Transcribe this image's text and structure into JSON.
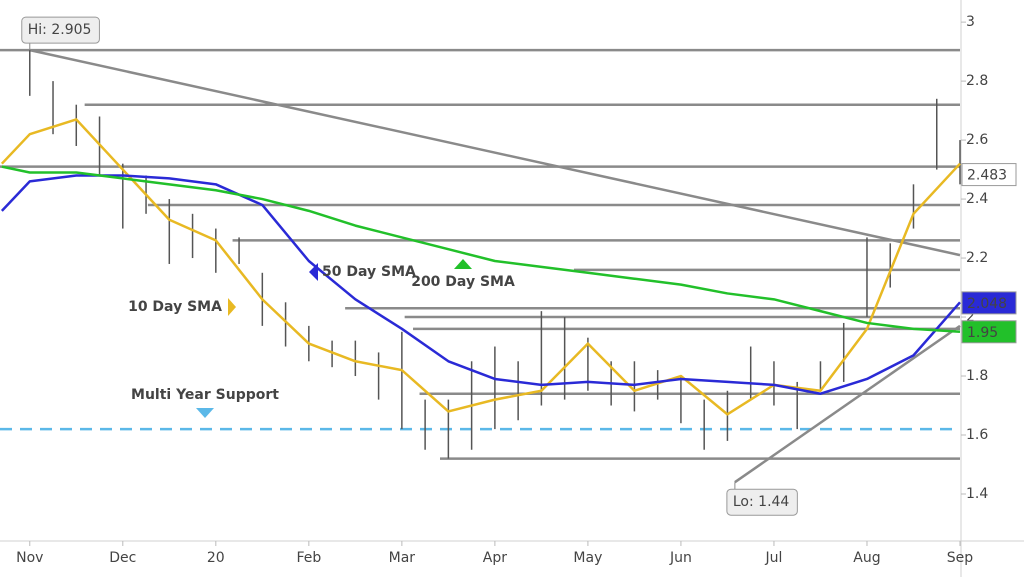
{
  "chart_data": {
    "type": "line",
    "xlim": [
      -0.32,
      10
    ],
    "ylim": [
      1.244,
      3.075
    ],
    "xticks": [
      {
        "value": 0,
        "label": "Nov"
      },
      {
        "value": 1,
        "label": "Dec"
      },
      {
        "value": 2,
        "label": "20"
      },
      {
        "value": 3,
        "label": "Feb"
      },
      {
        "value": 4,
        "label": "Mar"
      },
      {
        "value": 5,
        "label": "Apr"
      },
      {
        "value": 6,
        "label": "May"
      },
      {
        "value": 7,
        "label": "Jun"
      },
      {
        "value": 8,
        "label": "Jul"
      },
      {
        "value": 9,
        "label": "Aug"
      },
      {
        "value": 10,
        "label": "Sep"
      }
    ],
    "yticks": [
      1.4,
      1.6,
      1.8,
      2,
      2.2,
      2.4,
      2.6,
      2.8,
      3
    ],
    "x": [
      -0.3,
      0,
      0.5,
      1,
      1.5,
      2,
      2.5,
      3,
      3.5,
      4,
      4.5,
      5,
      5.5,
      6,
      6.5,
      7,
      7.5,
      8,
      8.5,
      9,
      9.5,
      10
    ],
    "series": [
      {
        "name": "10 Day SMA",
        "color": "#e8b923",
        "values": [
          2.52,
          2.62,
          2.67,
          2.5,
          2.33,
          2.26,
          2.06,
          1.91,
          1.85,
          1.82,
          1.68,
          1.72,
          1.75,
          1.91,
          1.75,
          1.8,
          1.67,
          1.77,
          1.75,
          1.96,
          2.35,
          2.52
        ]
      },
      {
        "name": "50 Day SMA",
        "color": "#2a2ad6",
        "values": [
          2.36,
          2.46,
          2.48,
          2.48,
          2.47,
          2.45,
          2.38,
          2.19,
          2.06,
          1.96,
          1.85,
          1.79,
          1.77,
          1.78,
          1.77,
          1.79,
          1.78,
          1.77,
          1.74,
          1.79,
          1.87,
          2.05
        ]
      },
      {
        "name": "200 Day SMA",
        "color": "#22c02a",
        "values": [
          2.51,
          2.49,
          2.49,
          2.47,
          2.45,
          2.43,
          2.4,
          2.36,
          2.31,
          2.27,
          2.23,
          2.19,
          2.17,
          2.15,
          2.13,
          2.11,
          2.08,
          2.06,
          2.02,
          1.98,
          1.96,
          1.95
        ]
      }
    ],
    "bars": {
      "color": "#555555",
      "x": [
        0,
        0.25,
        0.5,
        0.75,
        1,
        1.25,
        1.5,
        1.75,
        2,
        2.25,
        2.5,
        2.75,
        3,
        3.25,
        3.5,
        3.75,
        4,
        4.25,
        4.5,
        4.75,
        5,
        5.25,
        5.5,
        5.75,
        6,
        6.25,
        6.5,
        6.75,
        7,
        7.25,
        7.5,
        7.75,
        8,
        8.25,
        8.5,
        8.75,
        9,
        9.25,
        9.5,
        9.75,
        10
      ],
      "low": [
        2.75,
        2.62,
        2.58,
        2.48,
        2.3,
        2.35,
        2.18,
        2.2,
        2.15,
        2.18,
        1.97,
        1.9,
        1.85,
        1.83,
        1.8,
        1.72,
        1.62,
        1.55,
        1.52,
        1.55,
        1.62,
        1.65,
        1.7,
        1.72,
        1.75,
        1.7,
        1.68,
        1.72,
        1.64,
        1.55,
        1.58,
        1.72,
        1.7,
        1.62,
        1.75,
        1.78,
        2,
        2.1,
        2.3,
        2.5,
        2.45
      ],
      "high": [
        2.905,
        2.8,
        2.72,
        2.68,
        2.52,
        2.48,
        2.4,
        2.35,
        2.3,
        2.27,
        2.15,
        2.05,
        1.97,
        1.92,
        1.92,
        1.88,
        1.95,
        1.72,
        1.72,
        1.85,
        1.9,
        1.85,
        2.02,
        2,
        1.93,
        1.85,
        1.85,
        1.82,
        1.8,
        1.72,
        1.75,
        1.9,
        1.85,
        1.78,
        1.85,
        1.98,
        2.27,
        2.25,
        2.45,
        2.74,
        2.6
      ]
    },
    "levels": [
      {
        "value": 2.905
      },
      {
        "value": 2.72,
        "from": 0.59
      },
      {
        "value": 2.51
      },
      {
        "value": 2.38,
        "from": 1.27
      },
      {
        "value": 2.26,
        "from": 2.18
      },
      {
        "value": 2.16,
        "from": 5.85
      },
      {
        "value": 2.03,
        "from": 3.39
      },
      {
        "value": 2,
        "from": 4.03
      },
      {
        "value": 1.96,
        "from": 4.12
      },
      {
        "value": 1.74,
        "from": 4.19
      },
      {
        "value": 1.52,
        "from": 4.41
      }
    ],
    "trendlines": [
      {
        "x": [
          0,
          10
        ],
        "y": [
          2.905,
          2.21
        ]
      },
      {
        "x": [
          7.58,
          10
        ],
        "y": [
          1.44,
          1.97
        ]
      }
    ],
    "support": {
      "text": "Multi Year Support",
      "value": 1.62,
      "color": "#5bb8e8"
    },
    "annotations": [
      {
        "text": "Hi: 2.905",
        "x": 0,
        "y": 2.905
      },
      {
        "text": "Lo: 1.44",
        "x": 7.58,
        "y": 1.44
      }
    ],
    "price_tags": [
      {
        "value": 2.483,
        "background": "#ffffff",
        "color": "#333333"
      },
      {
        "value": 2.048,
        "background": "#2a2ad6",
        "color": "#ffffff"
      },
      {
        "value": 1.95,
        "background": "#22c02a",
        "color": "#ffffff"
      }
    ]
  }
}
